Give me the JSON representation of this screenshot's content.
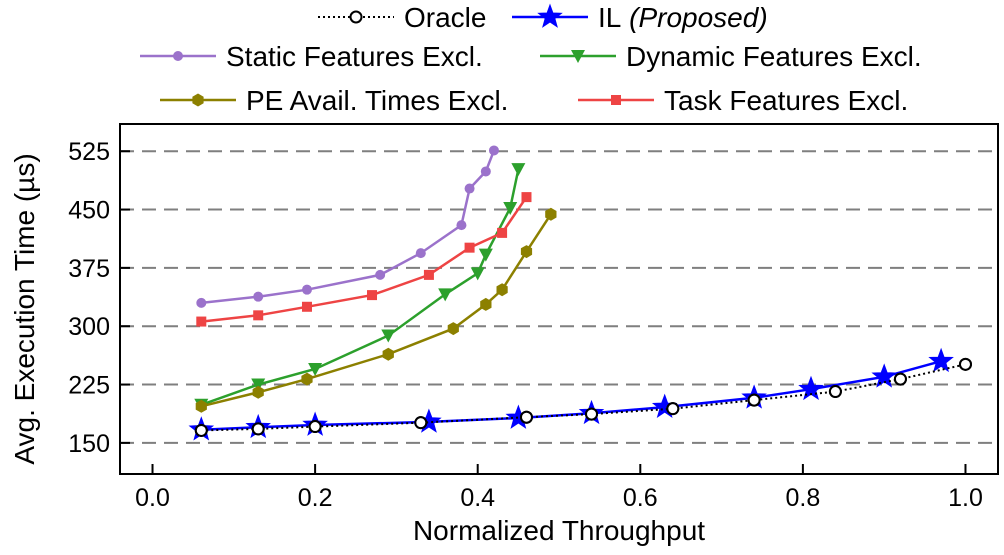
{
  "chart_data": {
    "type": "line",
    "xlabel": "Normalized Throughput",
    "ylabel": "Avg. Execution Time (µs)",
    "xlim": [
      -0.04,
      1.04
    ],
    "ylim": [
      110,
      560
    ],
    "xticks": [
      "0.0",
      "0.2",
      "0.4",
      "0.6",
      "0.8",
      "1.0"
    ],
    "yticks": [
      "150",
      "225",
      "300",
      "375",
      "450",
      "525"
    ],
    "grid": "horizontal dashed",
    "legend_position": "top",
    "series": [
      {
        "name": "Oracle",
        "name_suffix": "",
        "color": "#000000",
        "line": "dotted",
        "marker": "circle-open",
        "x": [
          0.06,
          0.13,
          0.2,
          0.33,
          0.46,
          0.54,
          0.64,
          0.74,
          0.84,
          0.92,
          1.0
        ],
        "y": [
          166,
          168,
          171,
          176,
          183,
          187,
          194,
          205,
          216,
          232,
          251
        ]
      },
      {
        "name": "IL",
        "name_suffix": "(Proposed)",
        "color": "#0000ff",
        "line": "solid",
        "marker": "star",
        "x": [
          0.06,
          0.13,
          0.2,
          0.34,
          0.45,
          0.54,
          0.63,
          0.74,
          0.81,
          0.9,
          0.97
        ],
        "y": [
          167,
          170,
          173,
          177,
          182,
          188,
          196,
          208,
          219,
          235,
          255
        ]
      },
      {
        "name": "Static Features Excl.",
        "name_suffix": "",
        "color": "#9b72cb",
        "line": "solid",
        "marker": "circle",
        "x": [
          0.06,
          0.13,
          0.19,
          0.28,
          0.33,
          0.38,
          0.39,
          0.41,
          0.42
        ],
        "y": [
          330,
          338,
          347,
          366,
          394,
          430,
          477,
          499,
          526
        ]
      },
      {
        "name": "Dynamic Features Excl.",
        "name_suffix": "",
        "color": "#2ca02c",
        "line": "solid",
        "marker": "triangle-down",
        "x": [
          0.06,
          0.13,
          0.2,
          0.29,
          0.36,
          0.4,
          0.41,
          0.44,
          0.45
        ],
        "y": [
          199,
          225,
          245,
          288,
          341,
          368,
          392,
          452,
          502
        ]
      },
      {
        "name": "PE Avail. Times Excl.",
        "name_suffix": "",
        "color": "#8c8000",
        "line": "solid",
        "marker": "hexagon",
        "x": [
          0.06,
          0.13,
          0.19,
          0.29,
          0.37,
          0.41,
          0.43,
          0.46,
          0.49
        ],
        "y": [
          197,
          215,
          232,
          264,
          297,
          328,
          347,
          396,
          444
        ]
      },
      {
        "name": "Task Features Excl.",
        "name_suffix": "",
        "color": "#ee4444",
        "line": "solid",
        "marker": "square",
        "x": [
          0.06,
          0.13,
          0.19,
          0.27,
          0.34,
          0.39,
          0.43,
          0.46
        ],
        "y": [
          306,
          314,
          325,
          340,
          366,
          401,
          420,
          466
        ]
      }
    ]
  }
}
